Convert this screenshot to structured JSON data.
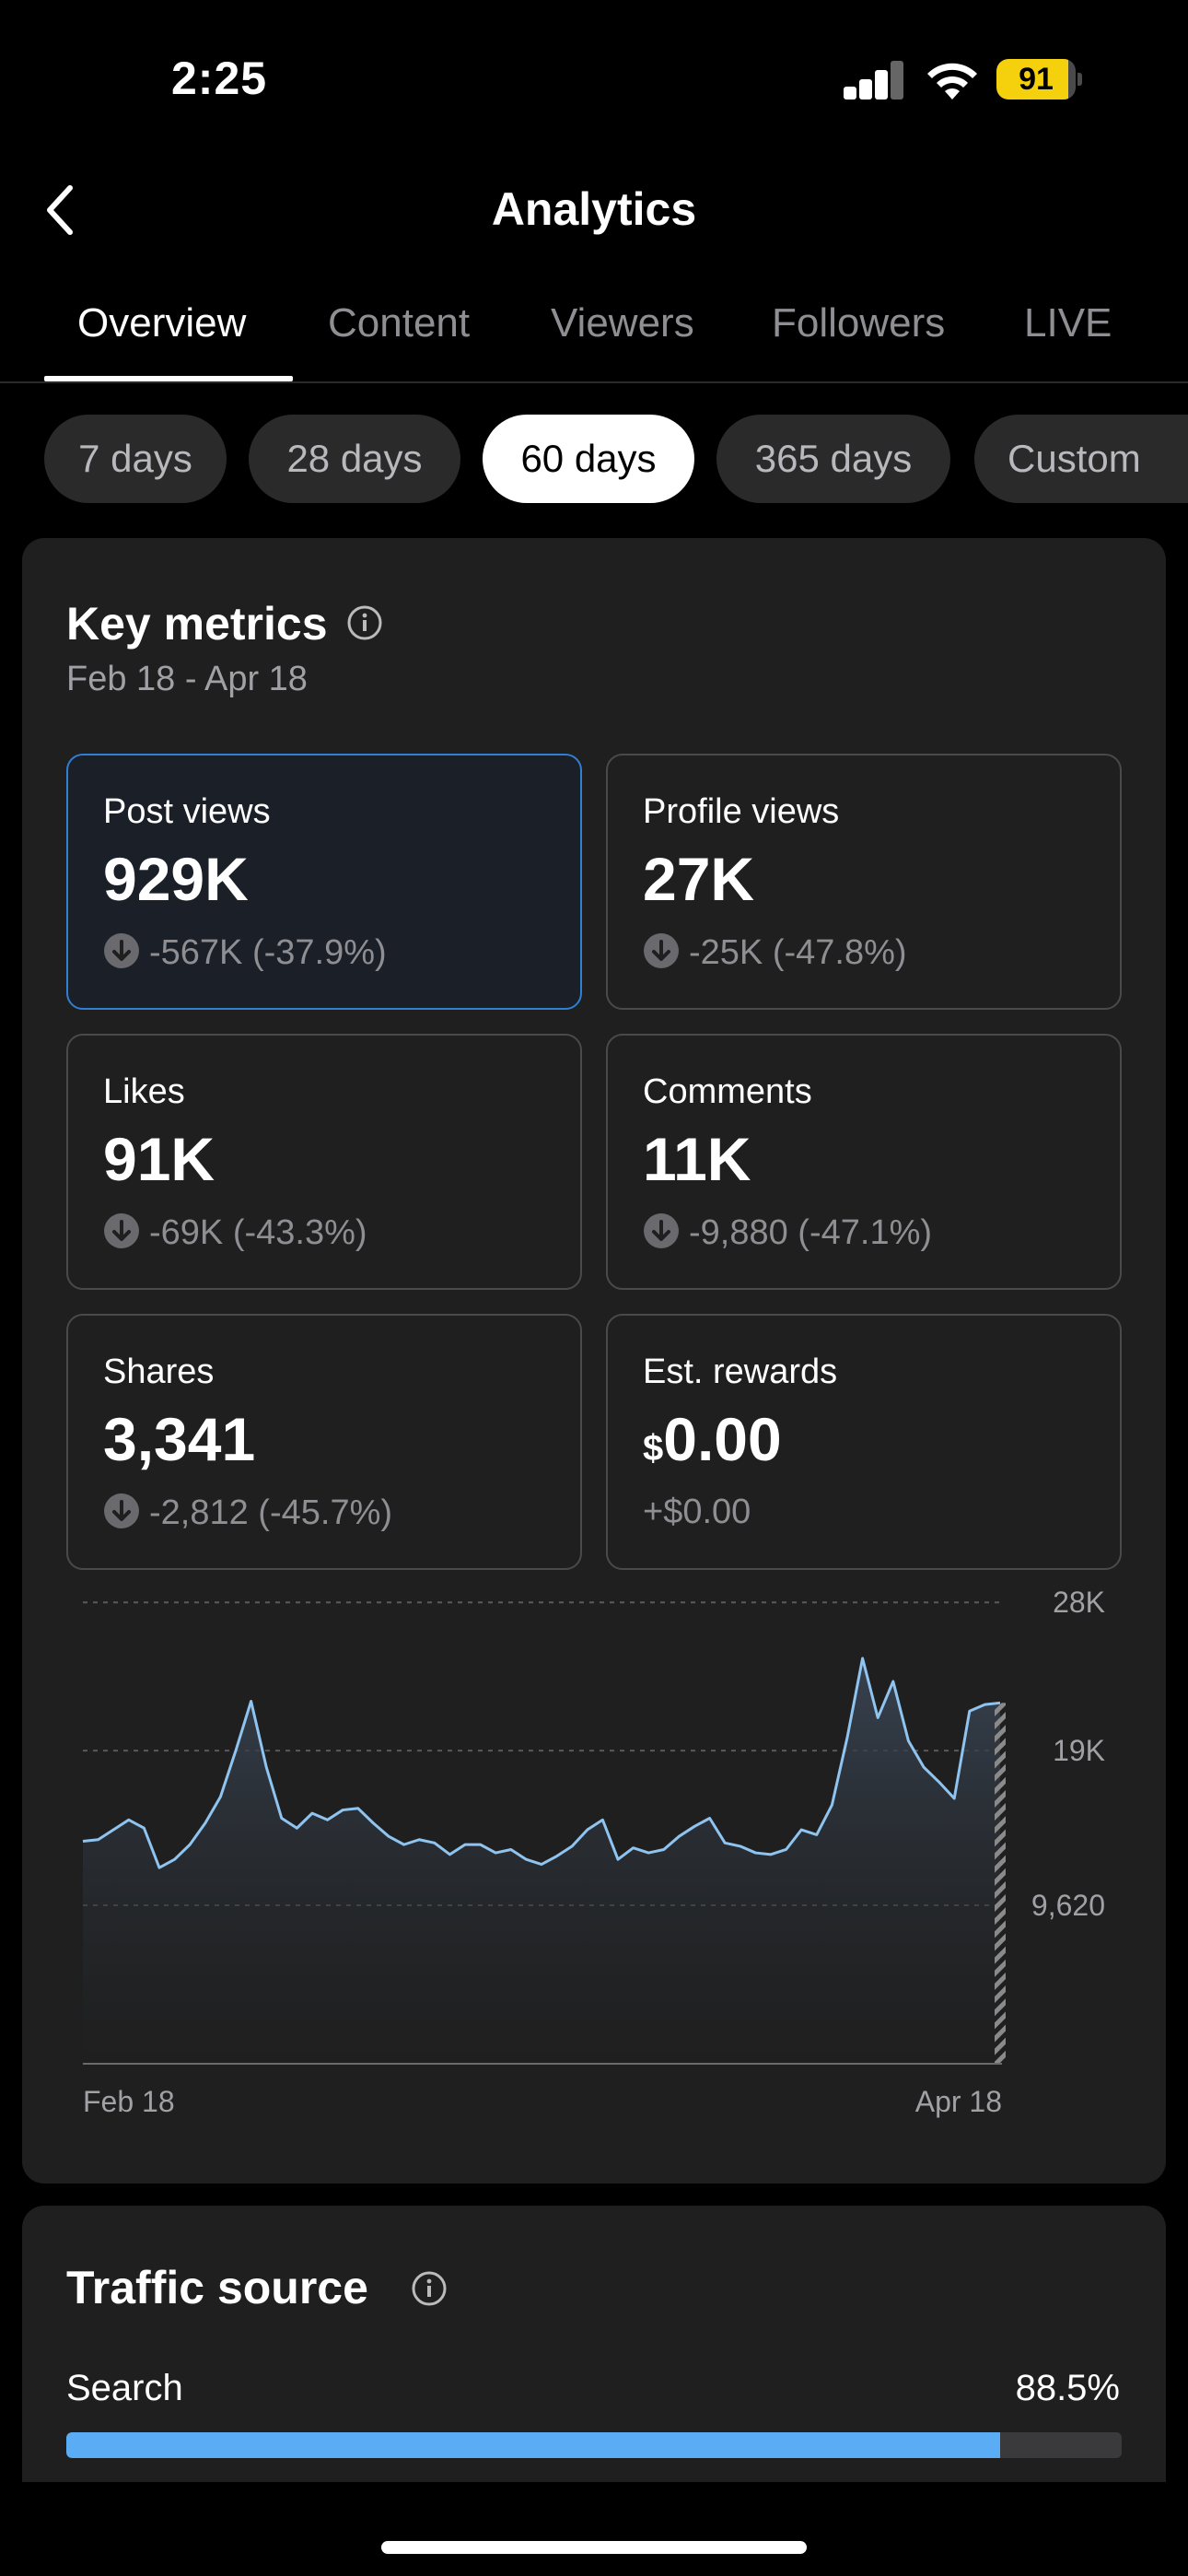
{
  "status": {
    "time": "2:25",
    "battery": "91",
    "battery_level": 0.91
  },
  "header": {
    "title": "Analytics",
    "back_icon": "chevron-left-icon"
  },
  "tabs": [
    {
      "label": "Overview",
      "active": true
    },
    {
      "label": "Content"
    },
    {
      "label": "Viewers"
    },
    {
      "label": "Followers"
    },
    {
      "label": "LIVE"
    }
  ],
  "ranges": [
    {
      "label": "7 days"
    },
    {
      "label": "28 days"
    },
    {
      "label": "60 days",
      "active": true
    },
    {
      "label": "365 days"
    },
    {
      "label": "Custom"
    }
  ],
  "key_metrics": {
    "title": "Key metrics",
    "date_range": "Feb 18 - Apr 18",
    "metrics": [
      {
        "label": "Post views",
        "value": "929K",
        "change": "-567K (-37.9%)",
        "selected": true
      },
      {
        "label": "Profile views",
        "value": "27K",
        "change": "-25K (-47.8%)"
      },
      {
        "label": "Likes",
        "value": "91K",
        "change": "-69K (-43.3%)"
      },
      {
        "label": "Comments",
        "value": "11K",
        "change": "-9,880 (-47.1%)"
      },
      {
        "label": "Shares",
        "value": "3,341",
        "change": "-2,812 (-45.7%)"
      },
      {
        "label": "Est. rewards",
        "currency": "$",
        "value": "0.00",
        "change": "+$0.00"
      }
    ]
  },
  "chart_data": {
    "type": "area",
    "series_color": "#8fc4f0",
    "ylim": [
      0,
      28850
    ],
    "yticks": [
      {
        "value": 9620,
        "label": "9,620"
      },
      {
        "value": 19000,
        "label": "19K"
      },
      {
        "value": 28000,
        "label": "28K"
      }
    ],
    "x_labels": [
      "Feb 18",
      "Apr 18"
    ],
    "grid": true,
    "values": [
      13500,
      13600,
      14200,
      14800,
      14300,
      11900,
      12400,
      13300,
      14600,
      16200,
      19000,
      22000,
      18000,
      14900,
      14300,
      15200,
      14800,
      15400,
      15500,
      14600,
      13800,
      13300,
      13600,
      13400,
      12700,
      13300,
      13300,
      12800,
      13000,
      12400,
      12100,
      12600,
      13200,
      14200,
      14800,
      12400,
      13100,
      12800,
      13000,
      13800,
      14400,
      14900,
      13400,
      13200,
      12800,
      12700,
      13000,
      14200,
      13900,
      15700,
      19800,
      24600,
      21000,
      23200,
      19600,
      18000,
      17100,
      16100,
      21400,
      21800,
      21900
    ],
    "partial_last": true
  },
  "traffic": {
    "title": "Traffic source",
    "items": [
      {
        "label": "Search",
        "pct_text": "88.5%",
        "pct": 0.885
      }
    ]
  }
}
